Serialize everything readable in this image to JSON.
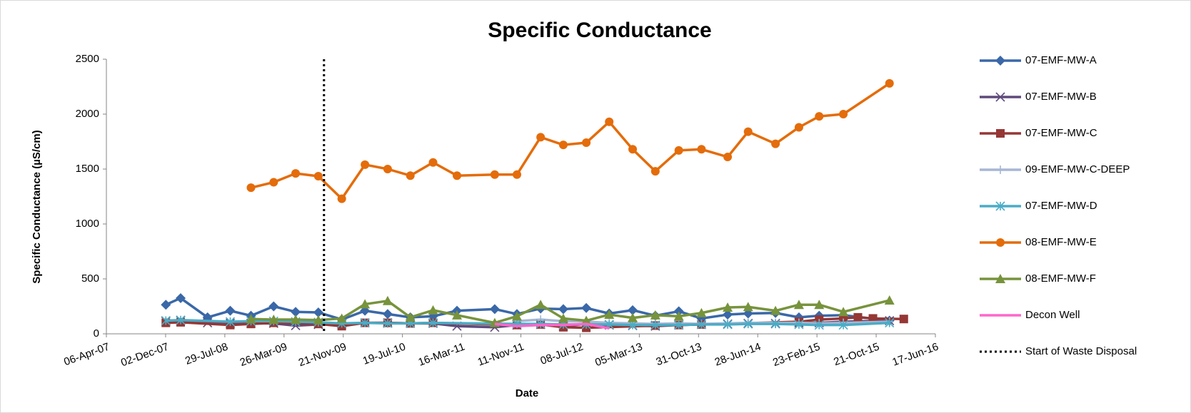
{
  "chart_data": {
    "type": "line",
    "title": "Specific Conductance",
    "x_label": "Date",
    "y_label": "Specific Conductance (µS/cm)",
    "ylim": [
      0,
      2500
    ],
    "yticks": [
      0,
      500,
      1000,
      1500,
      2000,
      2500
    ],
    "xlim": [
      "2007-04-06",
      "2016-06-17"
    ],
    "xticks": [
      {
        "value": "2007-04-06",
        "label": "06-Apr-07"
      },
      {
        "value": "2007-12-02",
        "label": "02-Dec-07"
      },
      {
        "value": "2008-07-29",
        "label": "29-Jul-08"
      },
      {
        "value": "2009-03-26",
        "label": "26-Mar-09"
      },
      {
        "value": "2009-11-21",
        "label": "21-Nov-09"
      },
      {
        "value": "2010-07-19",
        "label": "19-Jul-10"
      },
      {
        "value": "2011-03-16",
        "label": "16-Mar-11"
      },
      {
        "value": "2011-11-11",
        "label": "11-Nov-11"
      },
      {
        "value": "2012-07-08",
        "label": "08-Jul-12"
      },
      {
        "value": "2013-03-05",
        "label": "05-Mar-13"
      },
      {
        "value": "2013-10-31",
        "label": "31-Oct-13"
      },
      {
        "value": "2014-06-28",
        "label": "28-Jun-14"
      },
      {
        "value": "2015-02-23",
        "label": "23-Feb-15"
      },
      {
        "value": "2015-10-21",
        "label": "21-Oct-15"
      },
      {
        "value": "2016-06-17",
        "label": "17-Jun-16"
      }
    ],
    "series": [
      {
        "name": "07-EMF-MW-A",
        "color": "#3a68a8",
        "marker": "diamond",
        "x": [
          "2007-12-03",
          "2008-02-01",
          "2008-05-20",
          "2008-08-20",
          "2008-11-12",
          "2009-02-12",
          "2009-05-12",
          "2009-08-12",
          "2009-11-15",
          "2010-02-17",
          "2010-05-20",
          "2010-08-20",
          "2010-11-20",
          "2011-02-25",
          "2011-07-28",
          "2011-10-26",
          "2012-01-30",
          "2012-05-01",
          "2012-08-02",
          "2012-11-03",
          "2013-02-06",
          "2013-05-09",
          "2013-08-12",
          "2013-11-12",
          "2014-02-26",
          "2014-05-20",
          "2014-09-08",
          "2014-12-12",
          "2015-03-04",
          "2015-06-10",
          "2015-12-14"
        ],
        "values": [
          265,
          325,
          150,
          210,
          165,
          250,
          200,
          195,
          130,
          210,
          180,
          150,
          160,
          210,
          225,
          180,
          230,
          225,
          235,
          185,
          215,
          165,
          205,
          140,
          175,
          185,
          190,
          150,
          165,
          170,
          120
        ]
      },
      {
        "name": "07-EMF-MW-B",
        "color": "#604a7b",
        "marker": "x",
        "x": [
          "2007-12-03",
          "2008-02-01",
          "2008-05-20",
          "2008-08-20",
          "2008-11-12",
          "2009-02-12",
          "2009-05-12",
          "2009-08-12",
          "2009-11-15",
          "2010-02-17",
          "2010-05-20",
          "2010-08-20",
          "2010-11-20",
          "2011-02-25",
          "2011-07-28",
          "2011-10-26",
          "2012-01-30",
          "2012-05-01",
          "2012-08-02",
          "2012-11-03",
          "2013-02-06",
          "2013-05-09",
          "2013-08-12",
          "2013-11-12",
          "2014-02-26",
          "2014-05-20",
          "2014-09-08",
          "2014-12-12",
          "2015-03-04",
          "2015-06-10",
          "2015-12-14"
        ],
        "values": [
          115,
          120,
          100,
          95,
          95,
          95,
          75,
          85,
          90,
          100,
          100,
          95,
          95,
          70,
          60,
          80,
          85,
          70,
          90,
          80,
          75,
          70,
          80,
          85,
          90,
          95,
          95,
          100,
          100,
          110,
          120
        ]
      },
      {
        "name": "07-EMF-MW-C",
        "color": "#953735",
        "marker": "square",
        "x": [
          "2007-12-03",
          "2008-02-01",
          "2008-08-20",
          "2008-11-12",
          "2009-02-12",
          "2009-08-12",
          "2009-11-15",
          "2010-02-17",
          "2010-05-20",
          "2010-08-20",
          "2010-11-20",
          "2011-10-26",
          "2012-01-30",
          "2012-05-01",
          "2012-08-02",
          "2013-05-09",
          "2013-08-12",
          "2013-11-12",
          "2014-12-12",
          "2015-03-04",
          "2015-06-10",
          "2015-08-08",
          "2015-10-08",
          "2016-02-10"
        ],
        "values": [
          100,
          105,
          80,
          90,
          100,
          90,
          70,
          100,
          100,
          95,
          100,
          80,
          85,
          60,
          55,
          75,
          80,
          85,
          110,
          130,
          140,
          150,
          140,
          135
        ]
      },
      {
        "name": "09-EMF-MW-C-DEEP",
        "color": "#a6b6d4",
        "marker": "plus",
        "x": [
          "2011-10-26",
          "2012-01-30",
          "2012-05-01",
          "2012-08-02",
          "2012-11-03",
          "2013-02-06",
          "2013-05-09",
          "2013-08-12",
          "2013-11-12",
          "2014-02-26",
          "2014-05-20",
          "2014-09-08",
          "2014-12-12",
          "2015-03-04",
          "2015-06-10",
          "2015-12-14"
        ],
        "values": [
          115,
          130,
          115,
          110,
          100,
          95,
          90,
          95,
          90,
          95,
          100,
          100,
          100,
          95,
          100,
          110
        ]
      },
      {
        "name": "07-EMF-MW-D",
        "color": "#4bacc6",
        "marker": "asterisk",
        "x": [
          "2007-12-03",
          "2008-02-01",
          "2008-08-20",
          "2008-11-12",
          "2009-02-12",
          "2009-05-12",
          "2009-08-12",
          "2009-11-15",
          "2010-02-17",
          "2010-05-20",
          "2010-08-20",
          "2010-11-20",
          "2011-10-26",
          "2012-01-30",
          "2012-05-01",
          "2012-08-02",
          "2012-11-03",
          "2013-02-06",
          "2013-05-09",
          "2013-08-12",
          "2013-11-12",
          "2014-02-26",
          "2014-05-20",
          "2014-09-08",
          "2014-12-12",
          "2015-03-04",
          "2015-06-10",
          "2015-12-14"
        ],
        "values": [
          120,
          125,
          110,
          115,
          115,
          110,
          105,
          95,
          100,
          95,
          95,
          100,
          90,
          90,
          85,
          85,
          85,
          80,
          80,
          80,
          85,
          85,
          90,
          90,
          85,
          80,
          80,
          100
        ]
      },
      {
        "name": "08-EMF-MW-E",
        "color": "#e46c0a",
        "marker": "circle",
        "x": [
          "2008-11-12",
          "2009-02-12",
          "2009-05-12",
          "2009-08-12",
          "2009-11-15",
          "2010-02-17",
          "2010-05-20",
          "2010-08-20",
          "2010-11-20",
          "2011-02-25",
          "2011-07-28",
          "2011-10-26",
          "2012-01-30",
          "2012-05-01",
          "2012-08-02",
          "2012-11-03",
          "2013-02-06",
          "2013-05-09",
          "2013-08-12",
          "2013-11-12",
          "2014-02-26",
          "2014-05-20",
          "2014-09-08",
          "2014-12-12",
          "2015-03-04",
          "2015-06-10",
          "2015-12-14"
        ],
        "values": [
          1330,
          1380,
          1460,
          1435,
          1230,
          1540,
          1500,
          1440,
          1560,
          1440,
          1450,
          1450,
          1790,
          1720,
          1740,
          1930,
          1680,
          1480,
          1670,
          1680,
          1610,
          1840,
          1730,
          1880,
          1980,
          2000,
          2280
        ]
      },
      {
        "name": "08-EMF-MW-F",
        "color": "#77933c",
        "marker": "triangle",
        "x": [
          "2008-11-12",
          "2009-02-12",
          "2009-05-12",
          "2009-08-12",
          "2009-11-15",
          "2010-02-17",
          "2010-05-20",
          "2010-08-20",
          "2010-11-20",
          "2011-02-25",
          "2011-07-28",
          "2011-10-26",
          "2012-01-30",
          "2012-05-01",
          "2012-08-02",
          "2012-11-03",
          "2013-02-06",
          "2013-05-09",
          "2013-08-12",
          "2013-11-12",
          "2014-02-26",
          "2014-05-20",
          "2014-09-08",
          "2014-12-12",
          "2015-03-04",
          "2015-06-10",
          "2015-12-14"
        ],
        "values": [
          135,
          130,
          130,
          125,
          140,
          270,
          300,
          150,
          215,
          170,
          100,
          160,
          265,
          140,
          120,
          175,
          145,
          170,
          160,
          190,
          240,
          245,
          210,
          265,
          265,
          200,
          305
        ]
      },
      {
        "name": "Decon Well",
        "color": "#ff66cc",
        "marker": "none",
        "x": [
          "2011-07-28",
          "2011-10-26",
          "2012-01-30",
          "2012-05-01",
          "2012-08-02",
          "2012-11-03"
        ],
        "values": [
          90,
          70,
          80,
          80,
          90,
          50
        ]
      }
    ],
    "vertical_line": {
      "name": "Start of Waste Disposal",
      "x": "2009-09-04",
      "color": "#000000"
    }
  }
}
